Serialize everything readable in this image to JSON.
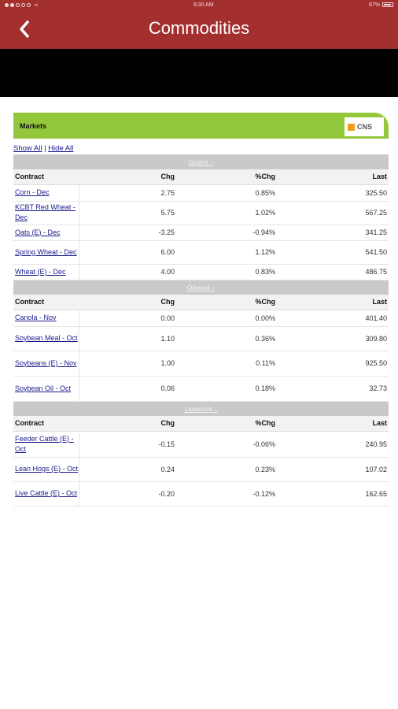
{
  "status_bar": {
    "time": "9:30 AM",
    "battery": "87%"
  },
  "nav": {
    "title": "Commodities",
    "back_icon": "chevron-left-icon"
  },
  "markets": {
    "label": "Markets",
    "logo_text": "CNS",
    "show_all": "Show All",
    "separator": "|",
    "hide_all": "Hide All"
  },
  "sections": [
    {
      "name": "Grains ↓",
      "headers": [
        "Contract",
        "Chg",
        "%Chg",
        "Last"
      ],
      "rows": [
        {
          "contract": "Corn - Dec",
          "chg": "2.75",
          "pct": "0.85%",
          "last": "325.50",
          "dir": "pos",
          "height": 21
        },
        {
          "contract": "KCBT Red Wheat - Dec",
          "chg": "5.75",
          "pct": "1.02%",
          "last": "567.25",
          "dir": "pos",
          "height": 30
        },
        {
          "contract": "Oats (E) - Dec",
          "chg": "-3.25",
          "pct": "-0.94%",
          "last": "341.25",
          "dir": "neg",
          "height": 20
        },
        {
          "contract": "Spring Wheat - Dec",
          "chg": "6.00",
          "pct": "1.12%",
          "last": "541.50",
          "dir": "pos",
          "height": 30
        },
        {
          "contract": "Wheat (E) - Dec",
          "chg": "4.00",
          "pct": "0.83%",
          "last": "486.75",
          "dir": "pos",
          "height": 20
        }
      ]
    },
    {
      "name": "Oilseed ↓",
      "headers": [
        "Contract",
        "Chg",
        "%Chg",
        "Last"
      ],
      "rows": [
        {
          "contract": "Canola - Nov",
          "chg": "0.00",
          "pct": "0.00%",
          "last": "401.40",
          "dir": "flat",
          "height": 21
        },
        {
          "contract": "Soybean Meal - Oct",
          "chg": "1.10",
          "pct": "0.36%",
          "last": "309.80",
          "dir": "pos",
          "height": 31
        },
        {
          "contract": "Soybeans (E) - Nov",
          "chg": "1.00",
          "pct": "0.11%",
          "last": "925.50",
          "dir": "pos",
          "height": 32
        },
        {
          "contract": "Soybean Oil - Oct",
          "chg": "0.06",
          "pct": "0.18%",
          "last": "32.73",
          "dir": "pos",
          "height": 32
        }
      ]
    },
    {
      "name": "Livestock ↓",
      "headers": [
        "Contract",
        "Chg",
        "%Chg",
        "Last"
      ],
      "rows": [
        {
          "contract": "Feeder Cattle (E) - Oct",
          "chg": "-0.15",
          "pct": "-0.06%",
          "last": "240.95",
          "dir": "neg",
          "height": 33
        },
        {
          "contract": "Lean Hogs (E) - Oct",
          "chg": "0.24",
          "pct": "0.23%",
          "last": "107.02",
          "dir": "pos",
          "height": 31
        },
        {
          "contract": "Live Cattle (E) - Oct",
          "chg": "-0.20",
          "pct": "-0.12%",
          "last": "162.65",
          "dir": "neg",
          "height": 31
        }
      ]
    }
  ]
}
